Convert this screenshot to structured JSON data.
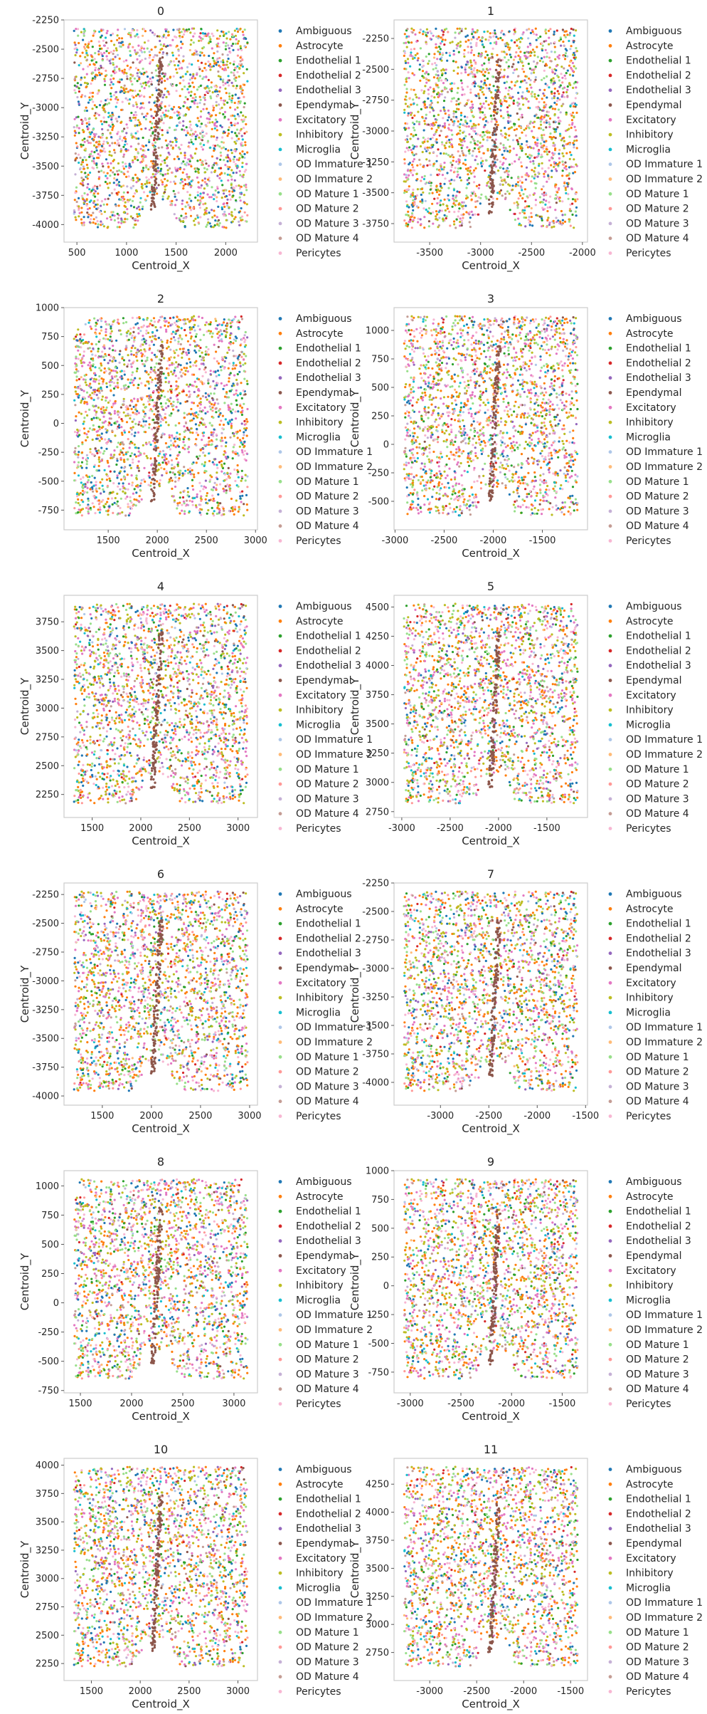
{
  "legend_labels": [
    "Ambiguous",
    "Astrocyte",
    "Endothelial 1",
    "Endothelial 2",
    "Endothelial 3",
    "Ependymal",
    "Excitatory",
    "Inhibitory",
    "Microglia",
    "OD Immature 1",
    "OD Immature 2",
    "OD Mature 1",
    "OD Mature 2",
    "OD Mature 3",
    "OD Mature 4",
    "Pericytes"
  ],
  "legend_colors": [
    "#1f77b4",
    "#ff7f0e",
    "#2ca02c",
    "#d62728",
    "#9467bd",
    "#8c564b",
    "#e377c2",
    "#bcbd22",
    "#17becf",
    "#aec7e8",
    "#ffbb78",
    "#98df8a",
    "#ff9896",
    "#c5b0d5",
    "#c49c94",
    "#f7b6d2"
  ],
  "chart_data": [
    {
      "type": "scatter",
      "title": "0",
      "xlabel": "Centroid_X",
      "ylabel": "Centroid_Y",
      "xlim": [
        370,
        2320
      ],
      "ylim": [
        -4150,
        -2250
      ],
      "xticks": [
        500,
        1000,
        1500,
        2000
      ],
      "yticks": [
        -2250,
        -2500,
        -2750,
        -3000,
        -3250,
        -3500,
        -3750,
        -4000
      ],
      "grid": false,
      "legend": "right"
    },
    {
      "type": "scatter",
      "title": "1",
      "xlabel": "Centroid_X",
      "ylabel": "Centroid_Y",
      "xlim": [
        -3850,
        -1950
      ],
      "ylim": [
        -3900,
        -2100
      ],
      "xticks": [
        -3500,
        -3000,
        -2500,
        -2000
      ],
      "yticks": [
        -2250,
        -2500,
        -2750,
        -3000,
        -3250,
        -3500,
        -3750
      ],
      "grid": false,
      "legend": "right"
    },
    {
      "type": "scatter",
      "title": "2",
      "xlabel": "Centroid_X",
      "ylabel": "Centroid_Y",
      "xlim": [
        1050,
        3020
      ],
      "ylim": [
        -920,
        1000
      ],
      "xticks": [
        1500,
        2000,
        2500,
        3000
      ],
      "yticks": [
        1000,
        750,
        500,
        250,
        0,
        -250,
        -500,
        -750
      ],
      "grid": false,
      "legend": "right"
    },
    {
      "type": "scatter",
      "title": "3",
      "xlabel": "Centroid_X",
      "ylabel": "Centroid_Y",
      "xlim": [
        -3010,
        -1040
      ],
      "ylim": [
        -750,
        1200
      ],
      "xticks": [
        -3000,
        -2500,
        -2000,
        -1500
      ],
      "yticks": [
        1000,
        750,
        500,
        250,
        0,
        -250,
        -500
      ],
      "grid": false,
      "legend": "right"
    },
    {
      "type": "scatter",
      "title": "4",
      "xlabel": "Centroid_X",
      "ylabel": "Centroid_Y",
      "xlim": [
        1210,
        3200
      ],
      "ylim": [
        2050,
        3980
      ],
      "xticks": [
        1500,
        2000,
        2500,
        3000
      ],
      "yticks": [
        3750,
        3500,
        3250,
        3000,
        2750,
        2500,
        2250
      ],
      "grid": false,
      "legend": "right"
    },
    {
      "type": "scatter",
      "title": "5",
      "xlabel": "Centroid_X",
      "ylabel": "Centroid_Y",
      "xlim": [
        -3080,
        -1080
      ],
      "ylim": [
        2700,
        4600
      ],
      "xticks": [
        -3000,
        -2500,
        -2000,
        -1500
      ],
      "yticks": [
        4500,
        4250,
        4000,
        3750,
        3500,
        3250,
        3000,
        2750
      ],
      "grid": false,
      "legend": "right"
    },
    {
      "type": "scatter",
      "title": "6",
      "xlabel": "Centroid_X",
      "ylabel": "Centroid_Y",
      "xlim": [
        1110,
        3080
      ],
      "ylim": [
        -4080,
        -2150
      ],
      "xticks": [
        1500,
        2000,
        2500,
        3000
      ],
      "yticks": [
        -2250,
        -2500,
        -2750,
        -3000,
        -3250,
        -3500,
        -3750,
        -4000
      ],
      "grid": false,
      "legend": "right"
    },
    {
      "type": "scatter",
      "title": "7",
      "xlabel": "Centroid_X",
      "ylabel": "Centroid_Y",
      "xlim": [
        -3480,
        -1480
      ],
      "ylim": [
        -4200,
        -2250
      ],
      "xticks": [
        -3000,
        -2500,
        -2000,
        -1500
      ],
      "yticks": [
        -2250,
        -2500,
        -2750,
        -3000,
        -3250,
        -3500,
        -3750,
        -4000
      ],
      "grid": false,
      "legend": "right"
    },
    {
      "type": "scatter",
      "title": "8",
      "xlabel": "Centroid_X",
      "ylabel": "Centroid_Y",
      "xlim": [
        1340,
        3230
      ],
      "ylim": [
        -770,
        1130
      ],
      "xticks": [
        1500,
        2000,
        2500,
        3000
      ],
      "yticks": [
        1000,
        750,
        500,
        250,
        0,
        -250,
        -500,
        -750
      ],
      "grid": false,
      "legend": "right"
    },
    {
      "type": "scatter",
      "title": "9",
      "xlabel": "Centroid_X",
      "ylabel": "Centroid_Y",
      "xlim": [
        -3160,
        -1250
      ],
      "ylim": [
        -930,
        1000
      ],
      "xticks": [
        -3000,
        -2500,
        -2000,
        -1500
      ],
      "yticks": [
        1000,
        750,
        500,
        250,
        0,
        -250,
        -500,
        -750
      ],
      "grid": false,
      "legend": "right"
    },
    {
      "type": "scatter",
      "title": "10",
      "xlabel": "Centroid_X",
      "ylabel": "Centroid_Y",
      "xlim": [
        1220,
        3200
      ],
      "ylim": [
        2100,
        4060
      ],
      "xticks": [
        1500,
        2000,
        2500,
        3000
      ],
      "yticks": [
        4000,
        3750,
        3500,
        3250,
        3000,
        2750,
        2500,
        2250
      ],
      "grid": false,
      "legend": "right"
    },
    {
      "type": "scatter",
      "title": "11",
      "xlabel": "Centroid_X",
      "ylabel": "Centroid_Y",
      "xlim": [
        -3380,
        -1320
      ],
      "ylim": [
        2500,
        4480
      ],
      "xticks": [
        -3000,
        -2500,
        -2000,
        -1500
      ],
      "yticks": [
        4250,
        4000,
        3750,
        3500,
        3250,
        3000,
        2750
      ],
      "grid": false,
      "legend": "right"
    }
  ]
}
